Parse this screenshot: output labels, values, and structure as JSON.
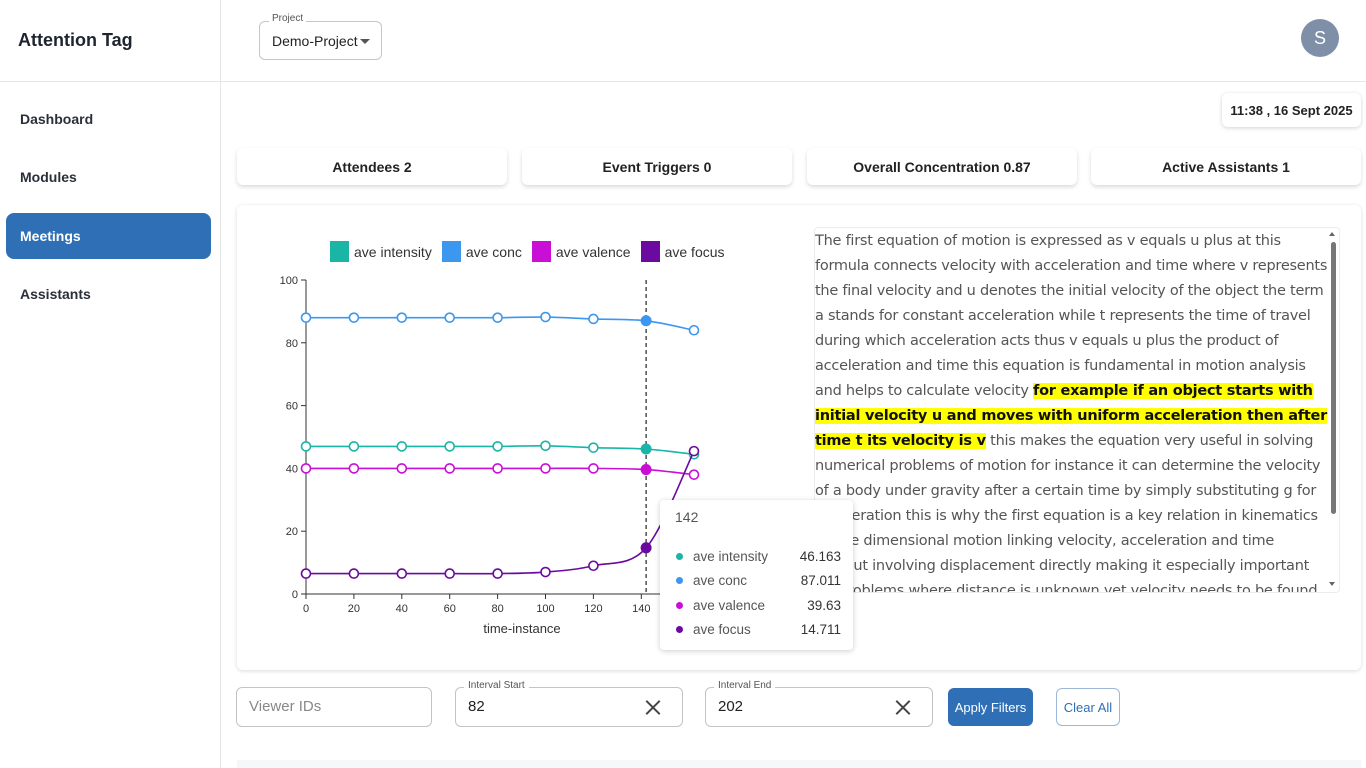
{
  "app": {
    "title": "Attention Tag"
  },
  "sidebar": {
    "items": [
      {
        "label": "Dashboard",
        "active": false
      },
      {
        "label": "Modules",
        "active": false
      },
      {
        "label": "Meetings",
        "active": true
      },
      {
        "label": "Assistants",
        "active": false
      }
    ]
  },
  "header": {
    "project_label": "Project",
    "project_value": "Demo-Project",
    "avatar_initial": "S"
  },
  "datetime": "11:38 , 16 Sept 2025",
  "stats": {
    "attendees": "Attendees 2",
    "event_triggers": "Event Triggers 0",
    "overall_concentration": "Overall Concentration 0.87",
    "active_assistants": "Active Assistants 1"
  },
  "legend": {
    "items": [
      {
        "label": "ave intensity",
        "color": "#1ab5a6"
      },
      {
        "label": "ave conc",
        "color": "#3b97f0"
      },
      {
        "label": "ave valence",
        "color": "#c90fd6"
      },
      {
        "label": "ave focus",
        "color": "#6a0aa0"
      }
    ]
  },
  "chart_data": {
    "type": "line",
    "xlabel": "time-instance",
    "ylabel": "",
    "x": [
      0,
      20,
      40,
      60,
      80,
      100,
      120,
      142,
      162
    ],
    "xticks": [
      0,
      20,
      40,
      60,
      80,
      100,
      120,
      140,
      160
    ],
    "yticks": [
      0,
      20,
      40,
      60,
      80,
      100
    ],
    "ylim": [
      0,
      100
    ],
    "xlim": [
      0,
      162
    ],
    "series": [
      {
        "name": "ave intensity",
        "color": "#1ab5a6",
        "values": [
          47,
          47,
          47,
          47,
          47,
          47.2,
          46.6,
          46.163,
          44.5
        ]
      },
      {
        "name": "ave conc",
        "color": "#3b97f0",
        "values": [
          88,
          88,
          88,
          88,
          88,
          88.2,
          87.6,
          87.011,
          84
        ]
      },
      {
        "name": "ave valence",
        "color": "#c90fd6",
        "values": [
          40,
          40,
          40,
          40,
          40,
          40,
          40,
          39.63,
          38
        ]
      },
      {
        "name": "ave focus",
        "color": "#6a0aa0",
        "values": [
          6.5,
          6.5,
          6.5,
          6.5,
          6.5,
          7,
          9,
          14.711,
          45.5
        ]
      }
    ],
    "hover_index": 7
  },
  "tooltip": {
    "title": "142",
    "rows": [
      {
        "name": "ave intensity",
        "value": "46.163",
        "color": "#1ab5a6"
      },
      {
        "name": "ave conc",
        "value": "87.011",
        "color": "#3b97f0"
      },
      {
        "name": "ave valence",
        "value": "39.63",
        "color": "#c90fd6"
      },
      {
        "name": "ave focus",
        "value": "14.711",
        "color": "#6a0aa0"
      }
    ]
  },
  "transcript": {
    "before": "The first equation of motion is expressed as v equals u plus at this formula connects velocity with acceleration and time where v represents the final velocity and u denotes the initial velocity of the object the term a stands for constant acceleration while t represents the time of travel during which acceleration acts thus v equals u plus the product of acceleration and time this equation is fundamental in motion analysis and helps to calculate velocity ",
    "highlight": "for example if an object starts with initial velocity u and moves with uniform acceleration then after time t its velocity is v",
    "after": " this makes the equation very useful in solving numerical problems of motion for instance it can determine the velocity of a body under gravity after a certain time by simply substituting g for acceleration this is why the first equation is a key relation in kinematics of one dimensional motion linking velocity, acceleration and time without involving displacement directly making it especially important for problems where distance is unknown yet velocity needs to be found or predicted this equation is the base for"
  },
  "filters": {
    "viewer_ids_placeholder": "Viewer IDs",
    "interval_start_label": "Interval Start",
    "interval_start_value": "82",
    "interval_end_label": "Interval End",
    "interval_end_value": "202",
    "apply_label": "Apply Filters",
    "clear_label": "Clear All"
  }
}
